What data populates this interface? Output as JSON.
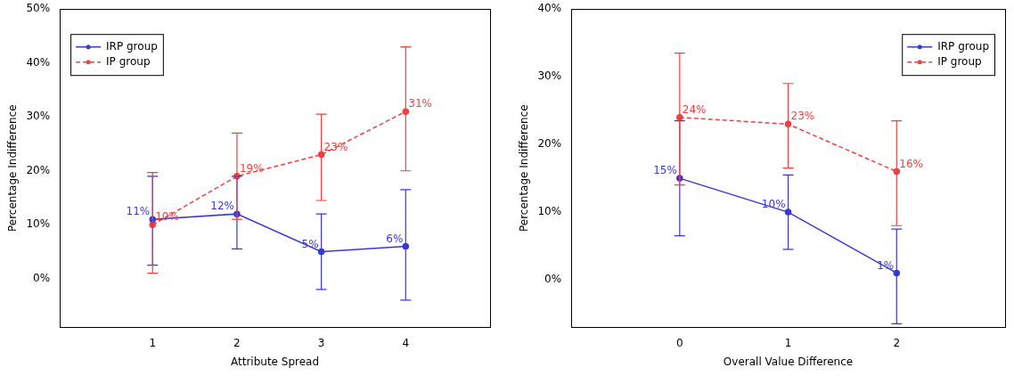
{
  "chart_data": [
    {
      "type": "line",
      "x_label": "Attribute Spread",
      "y_label": "Percentage Indifference",
      "x": [
        1,
        2,
        3,
        4
      ],
      "xlim": [
        -0.1,
        5
      ],
      "xticks": [
        1,
        2,
        3,
        4
      ],
      "ylim": [
        -9,
        50
      ],
      "yticks": [
        {
          "value": 0,
          "label": "0%"
        },
        {
          "value": 10,
          "label": "10%"
        },
        {
          "value": 20,
          "label": "20%"
        },
        {
          "value": 30,
          "label": "30%"
        },
        {
          "value": 40,
          "label": "40%"
        },
        {
          "value": 50,
          "label": "50%"
        }
      ],
      "grid": false,
      "legend": "upper left",
      "data_labels": true,
      "series": [
        {
          "name": "IRP group",
          "color": "#3838d8",
          "line_style": "solid",
          "marker": "circle",
          "values": [
            11,
            12,
            5,
            6
          ],
          "value_labels": [
            "11%",
            "12%",
            "5%",
            "6%"
          ],
          "error_lower": [
            2.5,
            5.5,
            -2,
            -4
          ],
          "error_upper": [
            19,
            19,
            12,
            16.5
          ]
        },
        {
          "name": "IP group",
          "color": "#f04040",
          "line_style": "dashed",
          "marker": "circle",
          "values": [
            10,
            19,
            23,
            31
          ],
          "value_labels": [
            "10%",
            "19%",
            "23%",
            "31%"
          ],
          "error_lower": [
            1,
            11,
            14.5,
            20
          ],
          "error_upper": [
            19.7,
            27,
            30.5,
            43
          ]
        }
      ]
    },
    {
      "type": "line",
      "x_label": "Overall Value Difference",
      "y_label": "Percentage Indifference",
      "x": [
        0,
        1,
        2
      ],
      "xlim": [
        -1,
        3
      ],
      "xticks": [
        0,
        1,
        2
      ],
      "ylim": [
        -7,
        40
      ],
      "yticks": [
        {
          "value": 0,
          "label": "0%"
        },
        {
          "value": 10,
          "label": "10%"
        },
        {
          "value": 20,
          "label": "20%"
        },
        {
          "value": 30,
          "label": "30%"
        },
        {
          "value": 40,
          "label": "40%"
        }
      ],
      "grid": false,
      "legend": "upper right",
      "data_labels": true,
      "series": [
        {
          "name": "IRP group",
          "color": "#3838d8",
          "line_style": "solid",
          "marker": "circle",
          "values": [
            15,
            10,
            1
          ],
          "value_labels": [
            "15%",
            "10%",
            "1%"
          ],
          "error_lower": [
            6.5,
            4.5,
            -6.5
          ],
          "error_upper": [
            23.5,
            15.5,
            7.5
          ]
        },
        {
          "name": "IP group",
          "color": "#f04040",
          "line_style": "dashed",
          "marker": "circle",
          "values": [
            24,
            23,
            16
          ],
          "value_labels": [
            "24%",
            "23%",
            "16%"
          ],
          "error_lower": [
            14,
            16.5,
            8
          ],
          "error_upper": [
            33.5,
            29,
            23.5
          ]
        }
      ]
    }
  ]
}
